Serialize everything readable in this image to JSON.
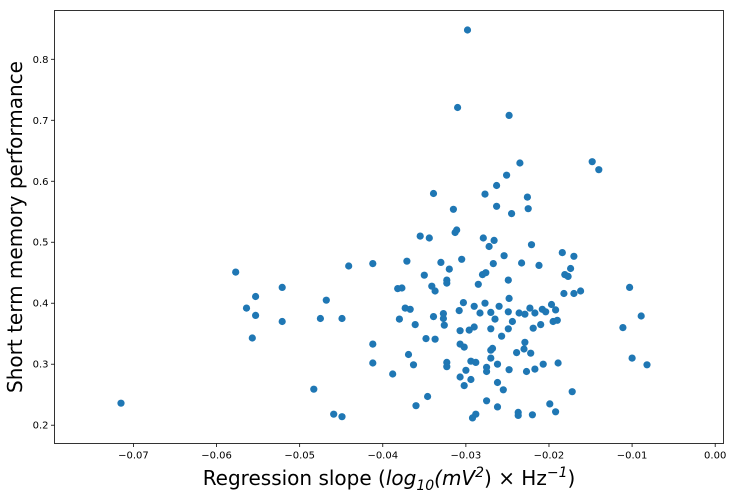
{
  "chart_data": {
    "type": "scatter",
    "title": "",
    "xlabel_parts": [
      "Regression slope (",
      "log",
      "10",
      "(mV",
      "2",
      ") × Hz",
      "−1",
      ")"
    ],
    "ylabel": "Short term memory performance",
    "xlim": [
      -0.0795,
      0.001
    ],
    "ylim": [
      0.17,
      0.88
    ],
    "grid": false,
    "legend": "none",
    "marker_color": "#1f77b4",
    "x_ticks": [
      {
        "value": -0.07,
        "label": "−0.07"
      },
      {
        "value": -0.06,
        "label": "−0.06"
      },
      {
        "value": -0.05,
        "label": "−0.05"
      },
      {
        "value": -0.04,
        "label": "−0.04"
      },
      {
        "value": -0.03,
        "label": "−0.03"
      },
      {
        "value": -0.02,
        "label": "−0.02"
      },
      {
        "value": -0.01,
        "label": "−0.01"
      },
      {
        "value": 0.0,
        "label": "0.00"
      }
    ],
    "y_ticks": [
      {
        "value": 0.2,
        "label": "0.2"
      },
      {
        "value": 0.3,
        "label": "0.3"
      },
      {
        "value": 0.4,
        "label": "0.4"
      },
      {
        "value": 0.5,
        "label": "0.5"
      },
      {
        "value": 0.6,
        "label": "0.6"
      },
      {
        "value": 0.7,
        "label": "0.7"
      },
      {
        "value": 0.8,
        "label": "0.8"
      }
    ],
    "points": [
      [
        -0.0715,
        0.236
      ],
      [
        -0.0577,
        0.451
      ],
      [
        -0.0564,
        0.392
      ],
      [
        -0.0557,
        0.343
      ],
      [
        -0.0553,
        0.411
      ],
      [
        -0.0553,
        0.38
      ],
      [
        -0.0521,
        0.426
      ],
      [
        -0.0521,
        0.37
      ],
      [
        -0.0483,
        0.259
      ],
      [
        -0.0475,
        0.375
      ],
      [
        -0.0468,
        0.405
      ],
      [
        -0.0459,
        0.218
      ],
      [
        -0.0449,
        0.214
      ],
      [
        -0.0449,
        0.375
      ],
      [
        -0.0441,
        0.461
      ],
      [
        -0.0412,
        0.465
      ],
      [
        -0.0412,
        0.333
      ],
      [
        -0.0412,
        0.302
      ],
      [
        -0.0388,
        0.284
      ],
      [
        -0.0382,
        0.424
      ],
      [
        -0.038,
        0.374
      ],
      [
        -0.0377,
        0.425
      ],
      [
        -0.0373,
        0.392
      ],
      [
        -0.0371,
        0.469
      ],
      [
        -0.0369,
        0.316
      ],
      [
        -0.0367,
        0.39
      ],
      [
        -0.0363,
        0.299
      ],
      [
        -0.0361,
        0.365
      ],
      [
        -0.036,
        0.232
      ],
      [
        -0.0355,
        0.51
      ],
      [
        -0.035,
        0.446
      ],
      [
        -0.0348,
        0.342
      ],
      [
        -0.0346,
        0.247
      ],
      [
        -0.0344,
        0.507
      ],
      [
        -0.0341,
        0.428
      ],
      [
        -0.0339,
        0.378
      ],
      [
        -0.0337,
        0.42
      ],
      [
        -0.0337,
        0.341
      ],
      [
        -0.0339,
        0.58
      ],
      [
        -0.033,
        0.467
      ],
      [
        -0.0327,
        0.383
      ],
      [
        -0.0327,
        0.375
      ],
      [
        -0.0326,
        0.364
      ],
      [
        -0.0323,
        0.438
      ],
      [
        -0.0323,
        0.433
      ],
      [
        -0.0323,
        0.303
      ],
      [
        -0.0323,
        0.296
      ],
      [
        -0.032,
        0.456
      ],
      [
        -0.0315,
        0.554
      ],
      [
        -0.0313,
        0.516
      ],
      [
        -0.0311,
        0.52
      ],
      [
        -0.031,
        0.721
      ],
      [
        -0.0308,
        0.388
      ],
      [
        -0.0307,
        0.355
      ],
      [
        -0.0307,
        0.333
      ],
      [
        -0.0307,
        0.279
      ],
      [
        -0.0305,
        0.472
      ],
      [
        -0.0303,
        0.401
      ],
      [
        -0.0302,
        0.328
      ],
      [
        -0.0302,
        0.265
      ],
      [
        -0.03,
        0.29
      ],
      [
        -0.0298,
        0.848
      ],
      [
        -0.0296,
        0.356
      ],
      [
        -0.0294,
        0.305
      ],
      [
        -0.0294,
        0.275
      ],
      [
        -0.0292,
        0.212
      ],
      [
        -0.029,
        0.395
      ],
      [
        -0.029,
        0.361
      ],
      [
        -0.0288,
        0.303
      ],
      [
        -0.0285,
        0.431
      ],
      [
        -0.0288,
        0.218
      ],
      [
        -0.0283,
        0.384
      ],
      [
        -0.028,
        0.447
      ],
      [
        -0.0279,
        0.507
      ],
      [
        -0.0277,
        0.579
      ],
      [
        -0.0277,
        0.4
      ],
      [
        -0.0276,
        0.45
      ],
      [
        -0.0275,
        0.295
      ],
      [
        -0.0275,
        0.288
      ],
      [
        -0.0275,
        0.24
      ],
      [
        -0.0272,
        0.493
      ],
      [
        -0.027,
        0.385
      ],
      [
        -0.027,
        0.323
      ],
      [
        -0.027,
        0.358
      ],
      [
        -0.027,
        0.31
      ],
      [
        -0.0268,
        0.326
      ],
      [
        -0.0267,
        0.465
      ],
      [
        -0.0266,
        0.503
      ],
      [
        -0.0265,
        0.374
      ],
      [
        -0.0263,
        0.593
      ],
      [
        -0.0263,
        0.559
      ],
      [
        -0.0262,
        0.3
      ],
      [
        -0.0262,
        0.27
      ],
      [
        -0.0262,
        0.23
      ],
      [
        -0.026,
        0.395
      ],
      [
        -0.0257,
        0.346
      ],
      [
        -0.0254,
        0.478
      ],
      [
        -0.0255,
        0.258
      ],
      [
        -0.0251,
        0.61
      ],
      [
        -0.0249,
        0.386
      ],
      [
        -0.0249,
        0.358
      ],
      [
        -0.0249,
        0.438
      ],
      [
        -0.0248,
        0.708
      ],
      [
        -0.0248,
        0.408
      ],
      [
        -0.0248,
        0.291
      ],
      [
        -0.0245,
        0.547
      ],
      [
        -0.0244,
        0.37
      ],
      [
        -0.0239,
        0.319
      ],
      [
        -0.0237,
        0.221
      ],
      [
        -0.0237,
        0.216
      ],
      [
        -0.0236,
        0.384
      ],
      [
        -0.0235,
        0.63
      ],
      [
        -0.0233,
        0.466
      ],
      [
        -0.023,
        0.325
      ],
      [
        -0.0229,
        0.336
      ],
      [
        -0.0229,
        0.382
      ],
      [
        -0.0227,
        0.288
      ],
      [
        -0.0226,
        0.574
      ],
      [
        -0.0225,
        0.555
      ],
      [
        -0.0223,
        0.392
      ],
      [
        -0.0222,
        0.318
      ],
      [
        -0.0221,
        0.496
      ],
      [
        -0.022,
        0.217
      ],
      [
        -0.0219,
        0.359
      ],
      [
        -0.0217,
        0.292
      ],
      [
        -0.0217,
        0.384
      ],
      [
        -0.0212,
        0.462
      ],
      [
        -0.021,
        0.365
      ],
      [
        -0.0208,
        0.39
      ],
      [
        -0.0207,
        0.3
      ],
      [
        -0.0204,
        0.386
      ],
      [
        -0.0199,
        0.235
      ],
      [
        -0.0197,
        0.398
      ],
      [
        -0.0195,
        0.37
      ],
      [
        -0.0192,
        0.389
      ],
      [
        -0.0192,
        0.222
      ],
      [
        -0.019,
        0.372
      ],
      [
        -0.0189,
        0.302
      ],
      [
        -0.0184,
        0.483
      ],
      [
        -0.0182,
        0.416
      ],
      [
        -0.0181,
        0.447
      ],
      [
        -0.0177,
        0.444
      ],
      [
        -0.0174,
        0.457
      ],
      [
        -0.0172,
        0.255
      ],
      [
        -0.017,
        0.477
      ],
      [
        -0.017,
        0.416
      ],
      [
        -0.0162,
        0.42
      ],
      [
        -0.0148,
        0.632
      ],
      [
        -0.014,
        0.619
      ],
      [
        -0.0111,
        0.36
      ],
      [
        -0.0103,
        0.426
      ],
      [
        -0.01,
        0.31
      ],
      [
        -0.0089,
        0.379
      ],
      [
        -0.0082,
        0.299
      ]
    ]
  }
}
